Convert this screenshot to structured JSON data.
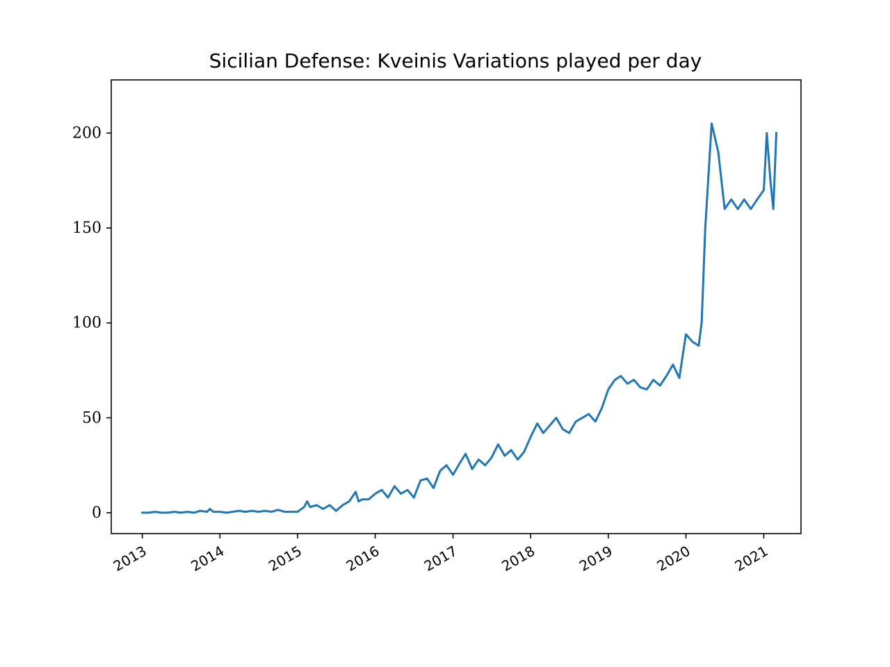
{
  "chart_data": {
    "type": "line",
    "title": "Sicilian Defense: Kveinis Variations played per day",
    "xlabel": "",
    "ylabel": "",
    "x_axis": "time",
    "xlim": [
      "2012-08-08",
      "2021-06-25"
    ],
    "ylim": [
      -11,
      228
    ],
    "xticks": [
      "2013",
      "2014",
      "2015",
      "2016",
      "2017",
      "2018",
      "2019",
      "2020",
      "2021"
    ],
    "yticks": [
      0,
      50,
      100,
      150,
      200
    ],
    "grid": false,
    "legend": "none",
    "series": [
      {
        "color": "#1f77b4",
        "points": [
          [
            "2013-01-01",
            0
          ],
          [
            "2013-02-01",
            0
          ],
          [
            "2013-03-01",
            0.5
          ],
          [
            "2013-04-01",
            0
          ],
          [
            "2013-05-01",
            0
          ],
          [
            "2013-06-01",
            0.5
          ],
          [
            "2013-07-01",
            0
          ],
          [
            "2013-08-01",
            0.5
          ],
          [
            "2013-09-01",
            0
          ],
          [
            "2013-10-01",
            1
          ],
          [
            "2013-11-01",
            0.5
          ],
          [
            "2013-11-15",
            2
          ],
          [
            "2013-12-01",
            0.5
          ],
          [
            "2014-01-01",
            0.5
          ],
          [
            "2014-02-01",
            0
          ],
          [
            "2014-03-01",
            0.5
          ],
          [
            "2014-04-01",
            1
          ],
          [
            "2014-05-01",
            0.5
          ],
          [
            "2014-06-01",
            1
          ],
          [
            "2014-07-01",
            0.5
          ],
          [
            "2014-08-01",
            1
          ],
          [
            "2014-09-01",
            0.5
          ],
          [
            "2014-10-01",
            1.5
          ],
          [
            "2014-11-01",
            0.5
          ],
          [
            "2014-12-01",
            0.5
          ],
          [
            "2015-01-01",
            0.5
          ],
          [
            "2015-02-01",
            3
          ],
          [
            "2015-02-15",
            6
          ],
          [
            "2015-03-01",
            3
          ],
          [
            "2015-04-01",
            4
          ],
          [
            "2015-05-01",
            2
          ],
          [
            "2015-06-01",
            4
          ],
          [
            "2015-07-01",
            1
          ],
          [
            "2015-08-01",
            4
          ],
          [
            "2015-09-01",
            6
          ],
          [
            "2015-10-01",
            11
          ],
          [
            "2015-10-15",
            6
          ],
          [
            "2015-11-01",
            7
          ],
          [
            "2015-12-01",
            7
          ],
          [
            "2016-01-01",
            10
          ],
          [
            "2016-02-01",
            12
          ],
          [
            "2016-03-01",
            8
          ],
          [
            "2016-04-01",
            14
          ],
          [
            "2016-05-01",
            10
          ],
          [
            "2016-06-01",
            12
          ],
          [
            "2016-07-01",
            8
          ],
          [
            "2016-08-01",
            17
          ],
          [
            "2016-09-01",
            18
          ],
          [
            "2016-10-01",
            13
          ],
          [
            "2016-11-01",
            22
          ],
          [
            "2016-12-01",
            25
          ],
          [
            "2017-01-01",
            20
          ],
          [
            "2017-02-01",
            26
          ],
          [
            "2017-03-01",
            31
          ],
          [
            "2017-04-01",
            23
          ],
          [
            "2017-05-01",
            28
          ],
          [
            "2017-06-01",
            25
          ],
          [
            "2017-07-01",
            29
          ],
          [
            "2017-08-01",
            36
          ],
          [
            "2017-09-01",
            30
          ],
          [
            "2017-10-01",
            33
          ],
          [
            "2017-11-01",
            28
          ],
          [
            "2017-12-01",
            32
          ],
          [
            "2018-01-01",
            40
          ],
          [
            "2018-02-01",
            47
          ],
          [
            "2018-03-01",
            42
          ],
          [
            "2018-04-01",
            46
          ],
          [
            "2018-05-01",
            50
          ],
          [
            "2018-06-01",
            44
          ],
          [
            "2018-07-01",
            42
          ],
          [
            "2018-08-01",
            48
          ],
          [
            "2018-09-01",
            50
          ],
          [
            "2018-10-01",
            52
          ],
          [
            "2018-11-01",
            48
          ],
          [
            "2018-12-01",
            55
          ],
          [
            "2019-01-01",
            65
          ],
          [
            "2019-02-01",
            70
          ],
          [
            "2019-03-01",
            72
          ],
          [
            "2019-04-01",
            68
          ],
          [
            "2019-05-01",
            70
          ],
          [
            "2019-06-01",
            66
          ],
          [
            "2019-07-01",
            65
          ],
          [
            "2019-08-01",
            70
          ],
          [
            "2019-09-01",
            67
          ],
          [
            "2019-10-01",
            72
          ],
          [
            "2019-11-01",
            78
          ],
          [
            "2019-12-01",
            71
          ],
          [
            "2020-01-01",
            94
          ],
          [
            "2020-02-01",
            90
          ],
          [
            "2020-03-01",
            88
          ],
          [
            "2020-03-15",
            100
          ],
          [
            "2020-04-01",
            150
          ],
          [
            "2020-05-01",
            205
          ],
          [
            "2020-06-01",
            190
          ],
          [
            "2020-07-01",
            160
          ],
          [
            "2020-08-01",
            165
          ],
          [
            "2020-09-01",
            160
          ],
          [
            "2020-10-01",
            165
          ],
          [
            "2020-11-01",
            160
          ],
          [
            "2020-12-01",
            165
          ],
          [
            "2021-01-01",
            170
          ],
          [
            "2021-01-15",
            200
          ],
          [
            "2021-02-01",
            175
          ],
          [
            "2021-02-15",
            160
          ],
          [
            "2021-03-01",
            200
          ]
        ]
      }
    ]
  }
}
